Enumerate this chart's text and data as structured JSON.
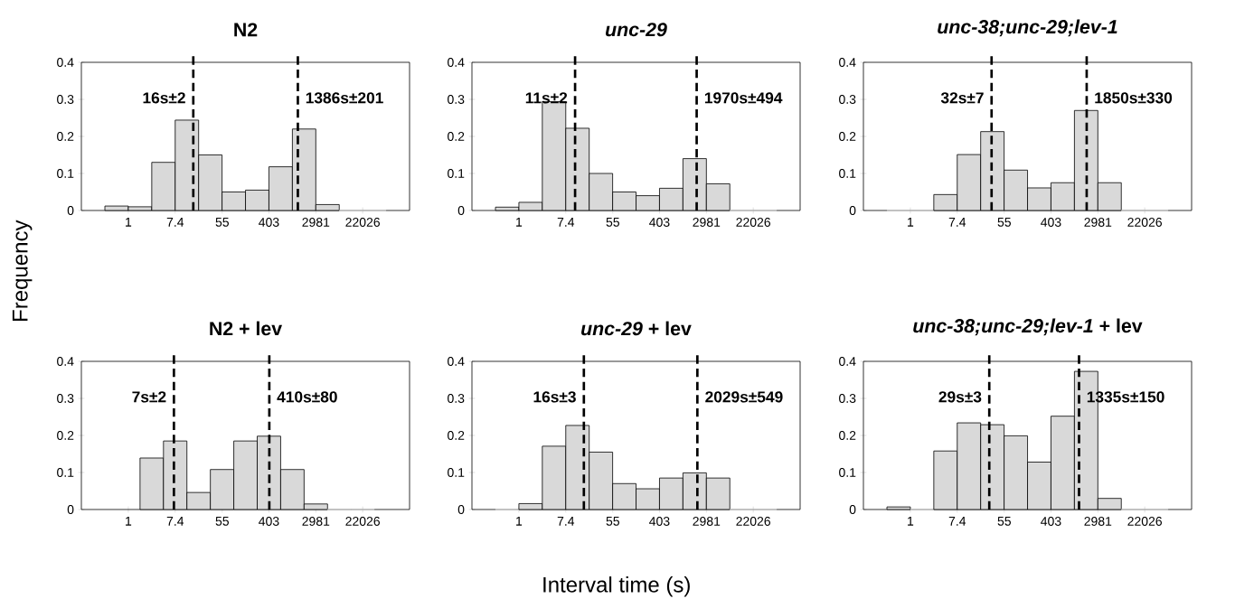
{
  "chart_data": [
    {
      "type": "histogram",
      "title": "N2",
      "ylabel": "Frequency",
      "color": "#d9d9d9",
      "log": "x",
      "bins": [
        0.368,
        1,
        2.718,
        7.389,
        20.09,
        54.6,
        148.4,
        403.4,
        1096.6,
        2981,
        8103,
        22026,
        59874
      ],
      "values": [
        0.012,
        0.01,
        0.13,
        0.244,
        0.15,
        0.05,
        0.055,
        0.118,
        0.22,
        0.016,
        0,
        0
      ],
      "xlim": [
        0.135,
        162755
      ],
      "xticks": [
        1,
        7.4,
        55,
        403,
        2981,
        22026
      ],
      "ylim": [
        0,
        0.4
      ],
      "yticks": [
        0,
        0.1,
        0.2,
        0.3,
        0.4
      ],
      "ref_lines": [
        {
          "axis": "x",
          "value": 16,
          "label": "16s±2",
          "color": "#000000",
          "line_style": "dashed"
        },
        {
          "axis": "x",
          "value": 1386,
          "label": "1386s±201",
          "color": "#000000",
          "line_style": "dashed"
        }
      ]
    },
    {
      "type": "histogram",
      "title": "*unc-29*",
      "color": "#d9d9d9",
      "log": "x",
      "bins": [
        0.368,
        1,
        2.718,
        7.389,
        20.09,
        54.6,
        148.4,
        403.4,
        1096.6,
        2981,
        8103,
        22026,
        59874
      ],
      "values": [
        0.009,
        0.022,
        0.294,
        0.222,
        0.1,
        0.05,
        0.04,
        0.06,
        0.14,
        0.072,
        0,
        0
      ],
      "xlim": [
        0.135,
        162755
      ],
      "xticks": [
        1,
        7.4,
        55,
        403,
        2981,
        22026
      ],
      "ylim": [
        0,
        0.4
      ],
      "yticks": [
        0,
        0.1,
        0.2,
        0.3,
        0.4
      ],
      "ref_lines": [
        {
          "axis": "x",
          "value": 11,
          "label": "11s±2",
          "color": "#000000",
          "line_style": "dashed"
        },
        {
          "axis": "x",
          "value": 1970,
          "label": "1970s±494",
          "color": "#000000",
          "line_style": "dashed"
        }
      ]
    },
    {
      "type": "histogram",
      "title": "*unc-38;unc-29;lev-1*",
      "color": "#d9d9d9",
      "log": "x",
      "bins": [
        0.368,
        1,
        2.718,
        7.389,
        20.09,
        54.6,
        148.4,
        403.4,
        1096.6,
        2981,
        8103,
        22026,
        59874
      ],
      "values": [
        0,
        0,
        0.043,
        0.151,
        0.213,
        0.109,
        0.061,
        0.075,
        0.27,
        0.075,
        0,
        0
      ],
      "xlim": [
        0.135,
        162755
      ],
      "xticks": [
        1,
        7.4,
        55,
        403,
        2981,
        22026
      ],
      "ylim": [
        0,
        0.4
      ],
      "yticks": [
        0,
        0.1,
        0.2,
        0.3,
        0.4
      ],
      "ref_lines": [
        {
          "axis": "x",
          "value": 32,
          "label": "32s±7",
          "color": "#000000",
          "line_style": "dashed"
        },
        {
          "axis": "x",
          "value": 1850,
          "label": "1850s±330",
          "color": "#000000",
          "line_style": "dashed"
        }
      ]
    },
    {
      "type": "histogram",
      "title": "N2 + lev",
      "color": "#d9d9d9",
      "log": "x",
      "bins": [
        1.649,
        4.482,
        12.18,
        33.12,
        90.02,
        244.7,
        665.1,
        1808,
        4915,
        13360,
        36316
      ],
      "values": [
        0.139,
        0.185,
        0.046,
        0.108,
        0.185,
        0.198,
        0.108,
        0.015,
        0,
        0
      ],
      "xlim": [
        0.135,
        162755
      ],
      "xticks": [
        1,
        7.4,
        55,
        403,
        2981,
        22026
      ],
      "ylim": [
        0,
        0.4
      ],
      "yticks": [
        0,
        0.1,
        0.2,
        0.3,
        0.4
      ],
      "ref_lines": [
        {
          "axis": "x",
          "value": 7,
          "label": "7s±2",
          "color": "#000000",
          "line_style": "dashed"
        },
        {
          "axis": "x",
          "value": 410,
          "label": "410s±80",
          "color": "#000000",
          "line_style": "dashed"
        }
      ]
    },
    {
      "type": "histogram",
      "title": "*unc-29* +  lev",
      "xlabel": "Interval time (s)",
      "color": "#d9d9d9",
      "log": "x",
      "bins": [
        0.368,
        1,
        2.718,
        7.389,
        20.09,
        54.6,
        148.4,
        403.4,
        1096.6,
        2981,
        8103,
        22026,
        59874
      ],
      "values": [
        0,
        0.016,
        0.171,
        0.227,
        0.155,
        0.07,
        0.056,
        0.085,
        0.099,
        0.085,
        0,
        0
      ],
      "xlim": [
        0.135,
        162755
      ],
      "xticks": [
        1,
        7.4,
        55,
        403,
        2981,
        22026
      ],
      "ylim": [
        0,
        0.4
      ],
      "yticks": [
        0,
        0.1,
        0.2,
        0.3,
        0.4
      ],
      "ref_lines": [
        {
          "axis": "x",
          "value": 16,
          "label": "16s±3",
          "color": "#000000",
          "line_style": "dashed"
        },
        {
          "axis": "x",
          "value": 2029,
          "label": "2029s±549",
          "color": "#000000",
          "line_style": "dashed"
        }
      ]
    },
    {
      "type": "histogram",
      "title": "*unc-38;unc-29;lev-1* + lev",
      "color": "#d9d9d9",
      "log": "x",
      "bins": [
        0.368,
        1,
        2.718,
        7.389,
        20.09,
        54.6,
        148.4,
        403.4,
        1096.6,
        2981,
        8103,
        22026,
        59874
      ],
      "values": [
        0.007,
        0,
        0.158,
        0.234,
        0.229,
        0.199,
        0.128,
        0.252,
        0.373,
        0.03,
        0,
        0
      ],
      "xlim": [
        0.135,
        162755
      ],
      "xticks": [
        1,
        7.4,
        55,
        403,
        2981,
        22026
      ],
      "ylim": [
        0,
        0.4
      ],
      "yticks": [
        0,
        0.1,
        0.2,
        0.3,
        0.4
      ],
      "ref_lines": [
        {
          "axis": "x",
          "value": 29,
          "label": "29s±3",
          "color": "#000000",
          "line_style": "dashed"
        },
        {
          "axis": "x",
          "value": 1335,
          "label": "1335s±150",
          "color": "#000000",
          "line_style": "dashed"
        }
      ]
    }
  ]
}
